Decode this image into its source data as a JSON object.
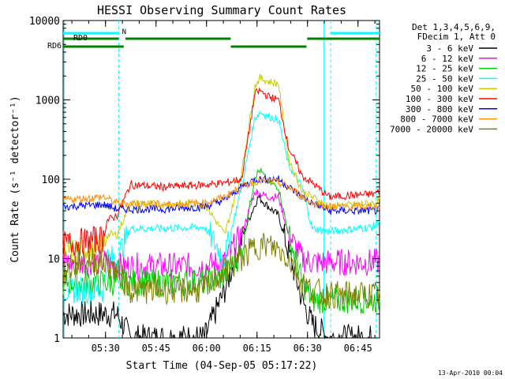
{
  "chart_data": {
    "type": "line",
    "title": "HESSI Observing Summary Count Rates",
    "xlabel": "Start Time (04-Sep-05 05:17:22)",
    "ylabel": "Count Rate (s⁻¹ detector⁻¹)",
    "y_scale": "log",
    "ylim": [
      1,
      10000
    ],
    "xlim_minutes": [
      0,
      38.6
    ],
    "x_ticks": [
      {
        "label": "05:30",
        "min": 12.6
      },
      {
        "label": "05:45",
        "min": 27.6
      },
      {
        "label": "06:00",
        "min": 42.6
      },
      {
        "label": "06:15",
        "min": 57.6
      },
      {
        "label": "06:30",
        "min": 72.6
      },
      {
        "label": "06:45",
        "min": 87.6
      }
    ],
    "y_ticks": [
      "1",
      "10",
      "100",
      "1000",
      "10000"
    ],
    "legend_header": [
      "Det 1,3,4,5,6,9,",
      "FDecim 1, Att 0"
    ],
    "legend_position": "right",
    "series": [
      {
        "name": "3 - 6 keV",
        "color": "#000000",
        "values": [
          [
            0,
            2
          ],
          [
            13,
            2
          ],
          [
            16,
            2
          ],
          [
            20,
            1
          ],
          [
            42,
            1
          ],
          [
            48,
            4
          ],
          [
            55,
            30
          ],
          [
            58,
            60
          ],
          [
            61,
            45
          ],
          [
            64,
            35
          ],
          [
            67,
            12
          ],
          [
            71,
            3
          ],
          [
            74,
            1.5
          ],
          [
            79,
            1
          ],
          [
            94,
            1
          ]
        ]
      },
      {
        "name": "6 - 12 keV",
        "color": "#ff00ff",
        "values": [
          [
            0,
            9
          ],
          [
            13,
            9
          ],
          [
            16,
            8
          ],
          [
            30,
            8
          ],
          [
            42,
            8
          ],
          [
            48,
            9
          ],
          [
            53,
            20
          ],
          [
            57,
            70
          ],
          [
            61,
            60
          ],
          [
            64,
            60
          ],
          [
            67,
            20
          ],
          [
            71,
            10
          ],
          [
            74,
            9
          ],
          [
            79,
            9
          ],
          [
            94,
            9
          ]
        ]
      },
      {
        "name": "12 - 25 keV",
        "color": "#00cc00",
        "values": [
          [
            0,
            5
          ],
          [
            13,
            5
          ],
          [
            16,
            5
          ],
          [
            30,
            5
          ],
          [
            42,
            5
          ],
          [
            48,
            6
          ],
          [
            53,
            12
          ],
          [
            57,
            110
          ],
          [
            58.5,
            130
          ],
          [
            61,
            90
          ],
          [
            64,
            80
          ],
          [
            67,
            20
          ],
          [
            71,
            5
          ],
          [
            74,
            3
          ],
          [
            79,
            3
          ],
          [
            94,
            3
          ]
        ]
      },
      {
        "name": "25 - 50 keV",
        "color": "#00ffff",
        "values": [
          [
            0,
            4
          ],
          [
            12,
            4
          ],
          [
            13,
            10
          ],
          [
            16,
            10
          ],
          [
            20,
            24
          ],
          [
            30,
            24
          ],
          [
            42,
            25
          ],
          [
            48,
            10
          ],
          [
            53,
            80
          ],
          [
            57,
            600
          ],
          [
            58.5,
            700
          ],
          [
            61,
            620
          ],
          [
            64,
            560
          ],
          [
            67,
            150
          ],
          [
            71,
            80
          ],
          [
            74,
            24
          ],
          [
            79,
            22
          ],
          [
            92,
            25
          ],
          [
            94,
            30
          ]
        ]
      },
      {
        "name": "50 - 100 keV",
        "color": "#cccc00",
        "values": [
          [
            0,
            12
          ],
          [
            12,
            14
          ],
          [
            13,
            20
          ],
          [
            16,
            20
          ],
          [
            20,
            50
          ],
          [
            30,
            48
          ],
          [
            42,
            50
          ],
          [
            48,
            20
          ],
          [
            53,
            120
          ],
          [
            57,
            1500
          ],
          [
            58.5,
            1900
          ],
          [
            61,
            1700
          ],
          [
            64,
            1600
          ],
          [
            67,
            180
          ],
          [
            71,
            70
          ],
          [
            74,
            60
          ],
          [
            79,
            45
          ],
          [
            92,
            50
          ],
          [
            94,
            55
          ]
        ]
      },
      {
        "name": "100 - 300 keV",
        "color": "#ff0000",
        "values": [
          [
            0,
            15
          ],
          [
            12,
            18
          ],
          [
            13,
            30
          ],
          [
            16,
            35
          ],
          [
            20,
            85
          ],
          [
            30,
            80
          ],
          [
            42,
            85
          ],
          [
            48,
            90
          ],
          [
            53,
            100
          ],
          [
            57,
            1200
          ],
          [
            58.5,
            1300
          ],
          [
            61,
            1100
          ],
          [
            64,
            1000
          ],
          [
            67,
            250
          ],
          [
            71,
            110
          ],
          [
            74,
            90
          ],
          [
            79,
            60
          ],
          [
            92,
            65
          ],
          [
            94,
            70
          ]
        ]
      },
      {
        "name": "300 - 800 keV",
        "color": "#0000ff",
        "values": [
          [
            0,
            45
          ],
          [
            12,
            48
          ],
          [
            16,
            42
          ],
          [
            30,
            42
          ],
          [
            42,
            45
          ],
          [
            48,
            55
          ],
          [
            53,
            80
          ],
          [
            57,
            100
          ],
          [
            61,
            100
          ],
          [
            64,
            100
          ],
          [
            67,
            80
          ],
          [
            71,
            60
          ],
          [
            74,
            50
          ],
          [
            79,
            40
          ],
          [
            94,
            40
          ]
        ]
      },
      {
        "name": "800 - 7000 keV",
        "color": "#ff8c00",
        "values": [
          [
            0,
            55
          ],
          [
            12,
            60
          ],
          [
            16,
            50
          ],
          [
            30,
            48
          ],
          [
            42,
            50
          ],
          [
            48,
            60
          ],
          [
            53,
            80
          ],
          [
            57,
            95
          ],
          [
            61,
            95
          ],
          [
            64,
            90
          ],
          [
            67,
            80
          ],
          [
            71,
            60
          ],
          [
            74,
            50
          ],
          [
            79,
            45
          ],
          [
            94,
            45
          ]
        ]
      },
      {
        "name": "7000 - 20000 keV",
        "color": "#808000",
        "values": [
          [
            0,
            6
          ],
          [
            6,
            10
          ],
          [
            12,
            9
          ],
          [
            16,
            7
          ],
          [
            20,
            4
          ],
          [
            30,
            4
          ],
          [
            42,
            4
          ],
          [
            48,
            7
          ],
          [
            53,
            10
          ],
          [
            57,
            14
          ],
          [
            60,
            15
          ],
          [
            64,
            13
          ],
          [
            67,
            10
          ],
          [
            71,
            5
          ],
          [
            74,
            4
          ],
          [
            79,
            3.5
          ],
          [
            94,
            3.5
          ]
        ]
      }
    ],
    "flags": [
      {
        "name": "N",
        "color": "#00ffff"
      },
      {
        "name": "RD0",
        "color": "#008000"
      },
      {
        "name": "RD6",
        "color": "#008000"
      }
    ]
  },
  "timestamp": "13-Apr-2010 00:04"
}
